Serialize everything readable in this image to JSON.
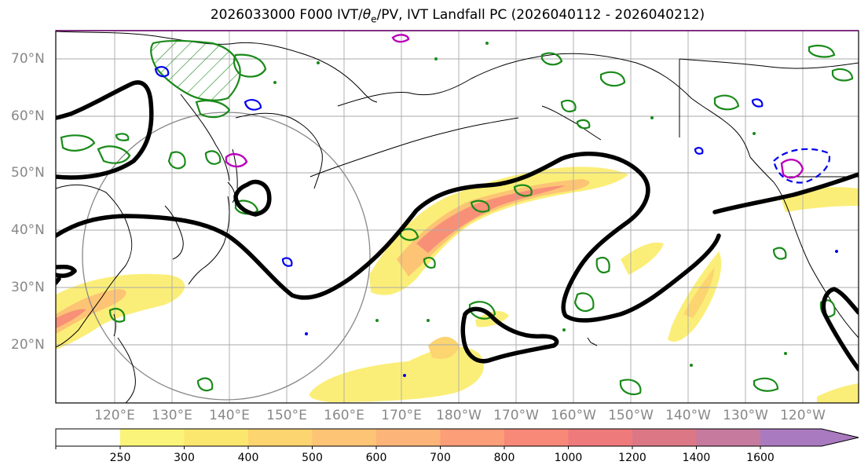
{
  "title": {
    "prefix": "2026033000 F000 IVT/",
    "theta": "θ",
    "sub": "e",
    "suffix": "/PV, IVT Landfall PC (2026040112 - 2026040212)"
  },
  "lat_labels": [
    "70°N",
    "60°N",
    "50°N",
    "40°N",
    "30°N",
    "20°N"
  ],
  "lon_labels": [
    "120°E",
    "130°E",
    "140°E",
    "150°E",
    "160°E",
    "170°E",
    "180°W",
    "170°W",
    "160°W",
    "150°W",
    "140°W",
    "130°W",
    "120°W"
  ],
  "colorbar": {
    "labels": [
      "250",
      "300",
      "400",
      "500",
      "600",
      "700",
      "800",
      "1000",
      "1200",
      "1400",
      "1600"
    ],
    "colors": [
      "#fbf47a",
      "#fbe66e",
      "#fcd470",
      "#fcc474",
      "#fcb478",
      "#fc9e78",
      "#f88878",
      "#ee7a7c",
      "#dc7886",
      "#c67a9e",
      "#aa7ac0"
    ]
  },
  "map": {
    "projection": "PlateCarree",
    "lon_range": [
      "110°E",
      "110°W"
    ],
    "lat_range": [
      "10°N",
      "75°N"
    ],
    "ivt_color": "#fbe060",
    "front_color": "#000000",
    "pv_green": "#1a8a1a",
    "pv_blue": "#0000ee",
    "pv_magenta": "#bb00bb"
  }
}
